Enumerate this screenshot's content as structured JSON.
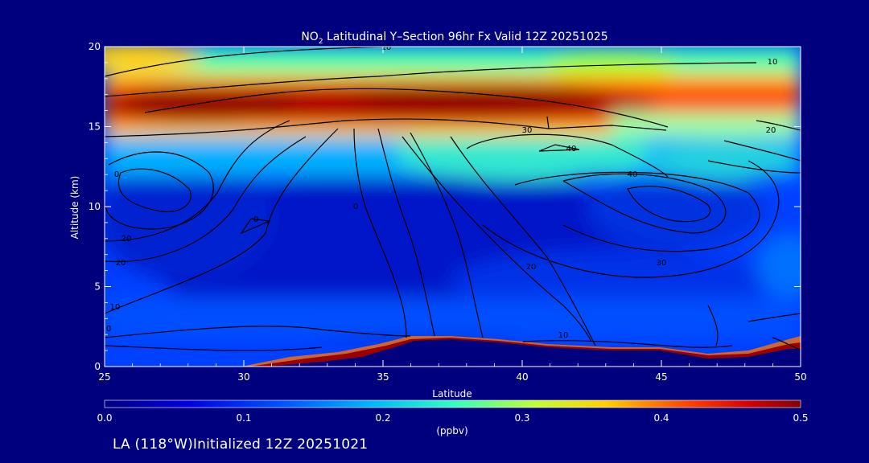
{
  "chart_data": {
    "type": "heatmap",
    "title_prefix": "NO",
    "title_sub": "2",
    "title_suffix": " Latitudinal Y–Section 96hr  Fx Valid 12Z 20251025",
    "xlabel": "Latitude",
    "ylabel": "Altitude (km)",
    "xlim": [
      25,
      50
    ],
    "ylim": [
      0,
      20
    ],
    "x_ticks": [
      "25",
      "30",
      "35",
      "40",
      "45",
      "50"
    ],
    "y_ticks": [
      "0",
      "5",
      "10",
      "15",
      "20"
    ],
    "colorbar": {
      "ticks": [
        "0.0",
        "0.1",
        "0.2",
        "0.3",
        "0.4",
        "0.5"
      ],
      "range": [
        0,
        0.5
      ],
      "unit": "(ppbv)"
    },
    "contour_labels": [
      "10",
      "10",
      "20",
      "0",
      "30",
      "40",
      "40",
      "20",
      "0",
      "20",
      "10",
      "0",
      "0",
      "30",
      "20",
      "30",
      "10"
    ],
    "footer": "LA (118°W)Initialized 12Z 20251021"
  }
}
